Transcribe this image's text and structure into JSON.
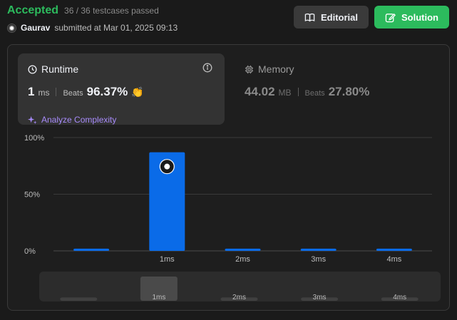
{
  "header": {
    "status": "Accepted",
    "testcases": "36 / 36 testcases passed",
    "user": "Gaurav",
    "submitted": "submitted at Mar 01, 2025 09:13"
  },
  "buttons": {
    "editorial": "Editorial",
    "solution": "Solution"
  },
  "runtime": {
    "title": "Runtime",
    "value": "1",
    "unit": "ms",
    "beats_label": "Beats",
    "beats_value": "96.37%",
    "analyze": "Analyze Complexity"
  },
  "memory": {
    "title": "Memory",
    "value": "44.02",
    "unit": "MB",
    "beats_label": "Beats",
    "beats_value": "27.80%"
  },
  "colors": {
    "accepted": "#2cbb5d",
    "bar": "#0a6be8",
    "analyze": "#a78bfa"
  },
  "chart_data": {
    "type": "bar",
    "categories": [
      "",
      "1ms",
      "2ms",
      "3ms",
      "4ms"
    ],
    "values": [
      2,
      87,
      2,
      2,
      2
    ],
    "highlight_index": 1,
    "yticks": [
      "0%",
      "50%",
      "100%"
    ],
    "ylim": [
      0,
      100
    ],
    "scrubber_labels": [
      "",
      "1ms",
      "2ms",
      "3ms",
      "4ms"
    ],
    "scrubber_values": [
      3,
      22,
      3,
      3,
      3
    ]
  }
}
